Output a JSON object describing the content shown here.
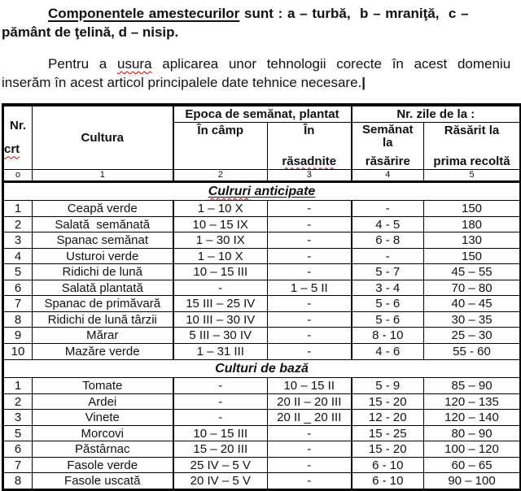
{
  "intro": {
    "p1": {
      "underlined": "Componentele amestecurilor",
      "line1_rest": " sunt : a – turbă,  b – mraniţă,  c –",
      "line2": "pământ de ţelină, d – nisip."
    },
    "p2": {
      "line1_before": "Pentru a ",
      "line1_misspelled": "usura",
      "line1_after": " aplicarea unor tehnologii corecte în acest domeniu",
      "line2": "inserăm în acest articol principalele date tehnice necesare.",
      "cursor": "|"
    }
  },
  "table": {
    "header": {
      "nr_top": "Nr.",
      "nr_bottom": "crt",
      "cultura": "Cultura",
      "epoca": "Epoca de semănat, plantat",
      "nr_zile": "Nr. zile de la :",
      "in_camp": "În câmp",
      "in_rasadnite_top": "În",
      "in_rasadnite_bottom": "răsadnite",
      "semanat_top": "Semănat\nla",
      "semanat_bottom": "răsărire",
      "rasarit_top": "Răsărit la",
      "rasarit_bottom": "prima recoltă"
    },
    "numbering": [
      "o",
      "1",
      "2",
      "3",
      "4",
      "5"
    ],
    "sections": [
      {
        "underlined": true,
        "title_parts": [
          {
            "text": "Culruri",
            "misspelled": true
          },
          {
            "text": " anticipate",
            "misspelled": false
          }
        ],
        "rows": [
          [
            "1",
            "Ceapă verde",
            "1 – 10 X",
            "-",
            "-",
            "150"
          ],
          [
            "2",
            "Salată  semănată",
            "10 – 15 IX",
            "-",
            "4 - 5",
            "180"
          ],
          [
            "3",
            "Spanac semănat",
            "1 – 30 IX",
            "-",
            "6 - 8",
            "130"
          ],
          [
            "4",
            "Usturoi verde",
            "1 – 10 X",
            "-",
            "-",
            "150"
          ],
          [
            "5",
            "Ridichi de lună",
            "10 – 15 III",
            "-",
            "5 - 7",
            "45 – 55"
          ],
          [
            "6",
            "Salată plantată",
            "-",
            "1 – 5 II",
            "3 - 4",
            "70 – 80"
          ],
          [
            "7",
            "Spanac de primăvară",
            "15 III – 25 IV",
            "-",
            "5 - 6",
            "40 – 45"
          ],
          [
            "8",
            "Ridichi de lună târzii",
            "10 III – 30 IV",
            "-",
            "5 - 6",
            "30 – 35"
          ],
          [
            "9",
            "Mărar",
            "5 III – 30 IV",
            "-",
            "8 - 10",
            "25 – 30"
          ],
          [
            "10",
            "Mazăre verde",
            "1 – 31 III",
            "-",
            "4 - 6",
            "55 - 60"
          ]
        ]
      },
      {
        "underlined": false,
        "title_parts": [
          {
            "text": "Culturi de bază",
            "misspelled": false
          }
        ],
        "rows": [
          [
            "1",
            "Tomate",
            "-",
            "10 – 15 II",
            "5 - 9",
            "85 – 90"
          ],
          [
            "2",
            "Ardei",
            "-",
            "20 II – 20 III",
            "15 - 20",
            "120 – 135"
          ],
          [
            "3",
            "Vinete",
            "-",
            "20 II _ 20 III",
            "12 - 20",
            "120 – 140"
          ],
          [
            "5",
            "Morcovi",
            "10 – 15 III",
            "-",
            "15 - 25",
            "80 – 90"
          ],
          [
            "6",
            "Păstârnac",
            "15 – 20 III",
            "-",
            "15 - 20",
            "100 – 120"
          ],
          [
            "7",
            "Fasole verde",
            "25 IV – 5 V",
            "-",
            "6 - 10",
            "60 – 65"
          ],
          [
            "8",
            "Fasole uscată",
            "20 IV – 5 V",
            "-",
            "6 - 10",
            "90 – 100"
          ]
        ]
      }
    ]
  },
  "colors": {
    "text": "#111111",
    "border": "#000000",
    "squiggle": "#c00000",
    "background": "#ffffff"
  }
}
